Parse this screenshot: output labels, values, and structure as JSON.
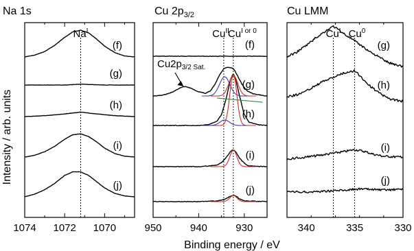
{
  "figure": {
    "ylabel": "Intensity / arb. units",
    "xlabel": "Binding energy / eV"
  },
  "chart_data": [
    {
      "type": "line",
      "title": "Na 1s",
      "xlim": [
        1074,
        1068.5
      ],
      "x_reversed": true,
      "xticks": [
        1074,
        1072,
        1070
      ],
      "reference_lines": [
        {
          "x": 1071.2,
          "label": "Na",
          "label_sup": "I"
        }
      ],
      "series": [
        {
          "name": "(f)",
          "points": [
            [
              1074,
              0.0
            ],
            [
              1073.5,
              0.02
            ],
            [
              1073,
              0.06
            ],
            [
              1072.5,
              0.13
            ],
            [
              1072,
              0.22
            ],
            [
              1071.6,
              0.28
            ],
            [
              1071.2,
              0.3
            ],
            [
              1070.8,
              0.27
            ],
            [
              1070.4,
              0.2
            ],
            [
              1070,
              0.12
            ],
            [
              1069.5,
              0.05
            ],
            [
              1069,
              0.01
            ],
            [
              1068.5,
              0.0
            ]
          ]
        },
        {
          "name": "(g)",
          "points": [
            [
              1074,
              0.0
            ],
            [
              1072,
              0.0
            ],
            [
              1071.2,
              0.01
            ],
            [
              1070,
              0.0
            ],
            [
              1068.5,
              0.0
            ]
          ]
        },
        {
          "name": "(h)",
          "points": [
            [
              1074,
              0.0
            ],
            [
              1073,
              0.01
            ],
            [
              1072,
              0.03
            ],
            [
              1071.2,
              0.05
            ],
            [
              1070.4,
              0.03
            ],
            [
              1069.5,
              0.01
            ],
            [
              1068.5,
              0.0
            ]
          ]
        },
        {
          "name": "(i)",
          "points": [
            [
              1074,
              0.0
            ],
            [
              1073.5,
              0.02
            ],
            [
              1073,
              0.06
            ],
            [
              1072.5,
              0.12
            ],
            [
              1072,
              0.2
            ],
            [
              1071.6,
              0.25
            ],
            [
              1071.2,
              0.26
            ],
            [
              1070.8,
              0.23
            ],
            [
              1070.4,
              0.17
            ],
            [
              1070,
              0.1
            ],
            [
              1069.5,
              0.04
            ],
            [
              1069,
              0.01
            ],
            [
              1068.5,
              0.0
            ]
          ]
        },
        {
          "name": "(j)",
          "points": [
            [
              1074,
              0.0
            ],
            [
              1073.5,
              0.03
            ],
            [
              1073,
              0.08
            ],
            [
              1072.5,
              0.15
            ],
            [
              1072,
              0.24
            ],
            [
              1071.6,
              0.28
            ],
            [
              1071.2,
              0.28
            ],
            [
              1070.8,
              0.24
            ],
            [
              1070.4,
              0.17
            ],
            [
              1070,
              0.1
            ],
            [
              1069.5,
              0.04
            ],
            [
              1069,
              0.01
            ],
            [
              1068.5,
              0.0
            ]
          ]
        }
      ]
    },
    {
      "type": "line",
      "title": "Cu 2p",
      "title_sub": "3/2",
      "xlim": [
        950,
        925
      ],
      "x_reversed": true,
      "xticks": [
        950,
        940,
        930
      ],
      "reference_lines": [
        {
          "x": 934.5,
          "label": "Cu",
          "label_sup": "II"
        },
        {
          "x": 932.4,
          "label": "Cu",
          "label_sup": "I or 0"
        }
      ],
      "annotation": {
        "text": "Cu2p",
        "sub": "3/2 Sat.",
        "x": 943,
        "series": "(g)"
      },
      "series": [
        {
          "name": "(f)",
          "points": [
            [
              950,
              0.0
            ],
            [
              940,
              0.0
            ],
            [
              932.4,
              0.0
            ],
            [
              925,
              0.0
            ]
          ]
        },
        {
          "name": "(g)",
          "points": [
            [
              950,
              0.0
            ],
            [
              948,
              0.01
            ],
            [
              946,
              0.05
            ],
            [
              944,
              0.12
            ],
            [
              943,
              0.14
            ],
            [
              942,
              0.12
            ],
            [
              940,
              0.06
            ],
            [
              938.5,
              0.04
            ],
            [
              937.5,
              0.07
            ],
            [
              936.5,
              0.16
            ],
            [
              935.5,
              0.3
            ],
            [
              934.5,
              0.4
            ],
            [
              933.5,
              0.42
            ],
            [
              932.4,
              0.4
            ],
            [
              931.5,
              0.3
            ],
            [
              930.5,
              0.17
            ],
            [
              929.5,
              0.08
            ],
            [
              928,
              0.03
            ],
            [
              926,
              0.01
            ],
            [
              925,
              0.0
            ]
          ]
        },
        {
          "name": "(h)",
          "points": [
            [
              950,
              0.0
            ],
            [
              940,
              0.0
            ],
            [
              938,
              0.01
            ],
            [
              936,
              0.06
            ],
            [
              935,
              0.16
            ],
            [
              934,
              0.38
            ],
            [
              933,
              0.68
            ],
            [
              932.4,
              0.76
            ],
            [
              931.8,
              0.66
            ],
            [
              931,
              0.42
            ],
            [
              930,
              0.16
            ],
            [
              929,
              0.05
            ],
            [
              927,
              0.01
            ],
            [
              925,
              0.0
            ]
          ]
        },
        {
          "name": "(i)",
          "points": [
            [
              950,
              0.0
            ],
            [
              940,
              0.0
            ],
            [
              936,
              0.02
            ],
            [
              935,
              0.06
            ],
            [
              934,
              0.13
            ],
            [
              933,
              0.22
            ],
            [
              932.4,
              0.25
            ],
            [
              931.8,
              0.21
            ],
            [
              931,
              0.12
            ],
            [
              930,
              0.05
            ],
            [
              929,
              0.01
            ],
            [
              925,
              0.0
            ]
          ]
        },
        {
          "name": "(j)",
          "points": [
            [
              950,
              0.0
            ],
            [
              940,
              0.0
            ],
            [
              936,
              0.01
            ],
            [
              934,
              0.04
            ],
            [
              933,
              0.08
            ],
            [
              932.4,
              0.09
            ],
            [
              931.8,
              0.08
            ],
            [
              931,
              0.04
            ],
            [
              930,
              0.01
            ],
            [
              925,
              0.0
            ]
          ]
        }
      ],
      "fit_components": [
        {
          "series": "(g)",
          "color": "#d42a1e",
          "center": 932.4,
          "height": 0.3,
          "width": 1.4
        },
        {
          "series": "(g)",
          "color": "#3b3bb3",
          "center": 934.3,
          "height": 0.28,
          "width": 1.6
        },
        {
          "series": "(g)",
          "color": "#2e8b3a",
          "center": 931.0,
          "height": 0.0,
          "width": 1.0
        },
        {
          "series": "(h)",
          "color": "#d42a1e",
          "center": 932.4,
          "height": 0.74,
          "width": 1.1
        },
        {
          "series": "(h)",
          "color": "#3b3bb3",
          "center": 934.3,
          "height": 0.08,
          "width": 1.5
        },
        {
          "series": "(i)",
          "color": "#d42a1e",
          "center": 932.4,
          "height": 0.24,
          "width": 1.1
        },
        {
          "series": "(j)",
          "color": "#d42a1e",
          "center": 932.4,
          "height": 0.09,
          "width": 1.1
        }
      ]
    },
    {
      "type": "line",
      "title": "Cu LMM",
      "xlim": [
        342,
        330
      ],
      "x_reversed": true,
      "xticks": [
        340,
        335,
        330
      ],
      "reference_lines": [
        {
          "x": 337.2,
          "label": "Cu",
          "label_sup": "I"
        },
        {
          "x": 335.0,
          "label": "Cu",
          "label_sup": "0"
        }
      ],
      "series": [
        {
          "name": "(g)",
          "points": [
            [
              342,
              0.0
            ],
            [
              341,
              0.05
            ],
            [
              340,
              0.12
            ],
            [
              339,
              0.2
            ],
            [
              338,
              0.27
            ],
            [
              337.2,
              0.32
            ],
            [
              336.5,
              0.27
            ],
            [
              335.5,
              0.2
            ],
            [
              334.5,
              0.13
            ],
            [
              333.5,
              0.06
            ],
            [
              332.5,
              0.0
            ],
            [
              331.5,
              -0.06
            ],
            [
              330,
              -0.1
            ]
          ]
        },
        {
          "name": "(h)",
          "points": [
            [
              342,
              0.0
            ],
            [
              341,
              0.02
            ],
            [
              340,
              0.06
            ],
            [
              339,
              0.12
            ],
            [
              338,
              0.17
            ],
            [
              337,
              0.21
            ],
            [
              336,
              0.25
            ],
            [
              335,
              0.27
            ],
            [
              334.5,
              0.22
            ],
            [
              333.5,
              0.12
            ],
            [
              332.5,
              0.04
            ],
            [
              331.5,
              -0.02
            ],
            [
              330,
              -0.05
            ]
          ]
        },
        {
          "name": "(i)",
          "points": [
            [
              342,
              0.0
            ],
            [
              340,
              0.02
            ],
            [
              338,
              0.05
            ],
            [
              336,
              0.08
            ],
            [
              335,
              0.1
            ],
            [
              334,
              0.08
            ],
            [
              333,
              0.05
            ],
            [
              332,
              0.03
            ],
            [
              330,
              0.02
            ]
          ]
        },
        {
          "name": "(j)",
          "points": [
            [
              342,
              0.0
            ],
            [
              340,
              0.0
            ],
            [
              338,
              0.01
            ],
            [
              336,
              0.02
            ],
            [
              335,
              0.03
            ],
            [
              334,
              0.03
            ],
            [
              332,
              0.02
            ],
            [
              330,
              0.03
            ]
          ]
        }
      ]
    }
  ]
}
